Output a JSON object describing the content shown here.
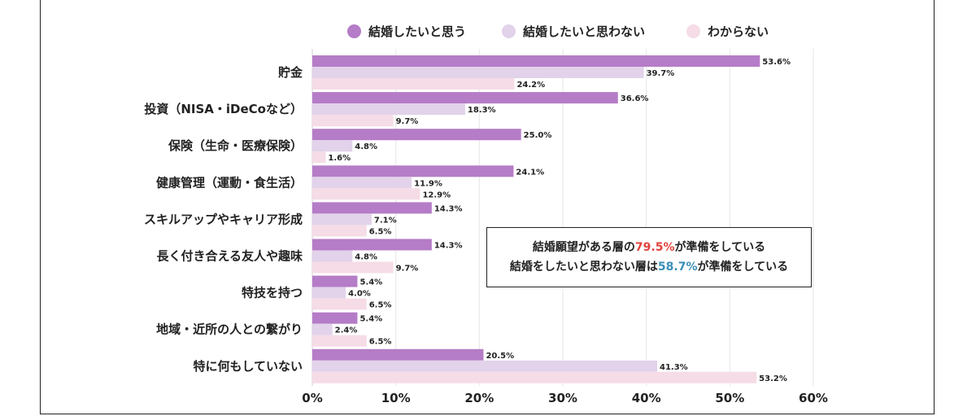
{
  "chart_data": {
    "type": "bar",
    "orientation": "horizontal",
    "categories": [
      "貯金",
      "投資（NISA・iDeCoなど）",
      "保険（生命・医療保険）",
      "健康管理（運動・食生活）",
      "スキルアップやキャリア形成",
      "長く付き合える友人や趣味",
      "特技を持つ",
      "地域・近所の人との繋がり",
      "特に何もしていない"
    ],
    "series": [
      {
        "name": "結婚したいと思う",
        "color": "#b57cc7",
        "values": [
          53.6,
          36.6,
          25.0,
          24.1,
          14.3,
          14.3,
          5.4,
          5.4,
          20.5
        ]
      },
      {
        "name": "結婚したいと思わない",
        "color": "#e2d2ea",
        "values": [
          39.7,
          18.3,
          4.8,
          11.9,
          7.1,
          4.8,
          4.0,
          2.4,
          41.3
        ]
      },
      {
        "name": "わからない",
        "color": "#f5dce6",
        "values": [
          24.2,
          9.7,
          1.6,
          12.9,
          6.5,
          9.7,
          6.5,
          6.5,
          53.2
        ]
      }
    ],
    "xlim": [
      0,
      60
    ],
    "xticks": [
      "0%",
      "10%",
      "20%",
      "30%",
      "40%",
      "50%",
      "60%"
    ],
    "value_suffix": "%",
    "grid": true,
    "legend_position": "top-center",
    "annotation": {
      "line1": {
        "before": "結婚願望がある層の",
        "highlight": "79.5%",
        "after": "が準備をしている",
        "highlight_color": "#e0433c"
      },
      "line2": {
        "before": "結婚をしたいと思わない層は",
        "highlight": "58.7%",
        "after": "が準備をしている",
        "highlight_color": "#3a8fb7"
      }
    }
  }
}
